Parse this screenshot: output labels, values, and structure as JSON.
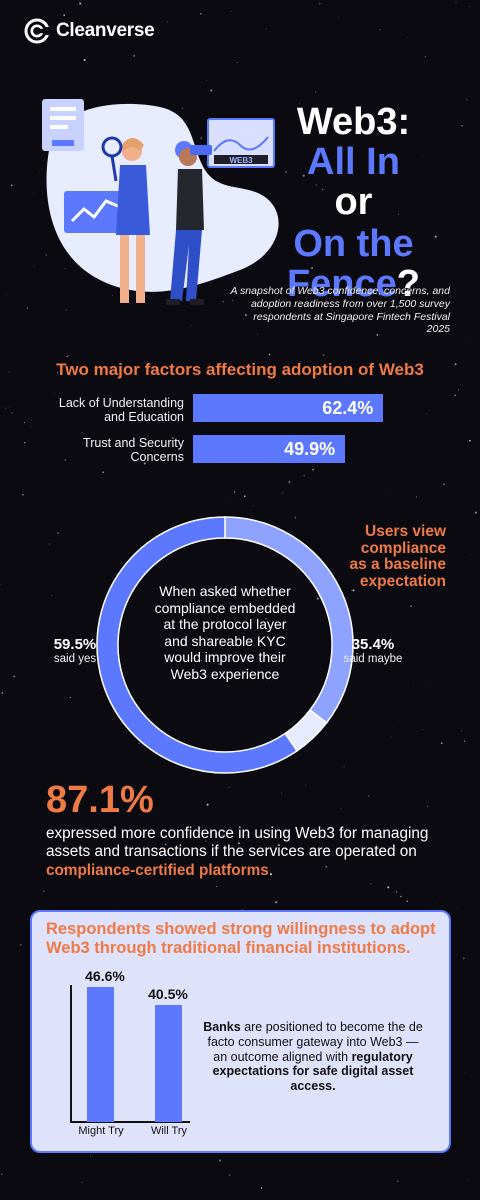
{
  "brand": {
    "name": "Cleanverse"
  },
  "header": {
    "title_line1": "Web3:",
    "title_line2": "All In",
    "title_line3": "or",
    "title_line4": "On the",
    "title_line5": "Fence",
    "title_q": "?",
    "subtitle": "A snapshot of Web3 confidence, concerns, and adoption readiness from over 1,500 survey respondents at Singapore Fintech Festival 2025",
    "illustration_tag": "WEB3"
  },
  "colors": {
    "accent_blue": "#5b78ff",
    "accent_orange": "#f07a45",
    "light_blue": "#8ea3ff",
    "pale_blue": "#e6ebff",
    "panel_bg": "#dfe2fb",
    "background": "#0b0a10"
  },
  "factors": {
    "title": "Two major factors affecting adoption of Web3",
    "items": [
      {
        "label_line1": "Lack of Understanding",
        "label_line2": "and Education",
        "value_text": "62.4%"
      },
      {
        "label_line1": "Trust and Security",
        "label_line2": "Concerns",
        "value_text": "49.9%"
      }
    ]
  },
  "compliance": {
    "side_note_line1": "Users view",
    "side_note_line2": "compliance",
    "side_note_line3": "as a baseline",
    "side_note_line4": "expectation",
    "center_text": "When asked whether compliance embedded at the protocol layer and shareable KYC would improve their Web3 experience",
    "yes_value": "59.5%",
    "yes_label": "said yes",
    "maybe_value": "35.4%",
    "maybe_label": "said maybe"
  },
  "confidence": {
    "stat": "87.1%",
    "text_main": "expressed more confidence in using Web3 for managing assets and transactions if the services are operated on ",
    "text_highlight": "compliance-certified platforms",
    "text_end": "."
  },
  "institutions": {
    "title": "Respondents showed strong willingness to adopt Web3 through traditional financial institutions.",
    "bars": [
      {
        "label": "Might Try",
        "value_text": "46.6%"
      },
      {
        "label": "Will Try",
        "value_text": "40.5%"
      }
    ],
    "note_bold1": "Banks",
    "note_plain": " are positioned to become the de facto consumer gateway into Web3 — an outcome aligned with ",
    "note_bold2": "regulatory expectations for safe digital asset access."
  },
  "chart_data": [
    {
      "type": "bar",
      "orientation": "horizontal",
      "title": "Two major factors affecting adoption of Web3",
      "categories": [
        "Lack of Understanding and Education",
        "Trust and Security Concerns"
      ],
      "values": [
        62.4,
        49.9
      ]
    },
    {
      "type": "pie",
      "variant": "donut",
      "categories": [
        "said yes",
        "said maybe",
        "other"
      ],
      "values": [
        59.5,
        35.4,
        5.1
      ],
      "colors": [
        "#5b78ff",
        "#8ea3ff",
        "#e6ebff"
      ]
    },
    {
      "type": "bar",
      "orientation": "vertical",
      "title": "Respondents showed strong willingness to adopt Web3 through traditional financial institutions.",
      "categories": [
        "Might Try",
        "Will Try"
      ],
      "values": [
        46.6,
        40.5
      ]
    }
  ]
}
